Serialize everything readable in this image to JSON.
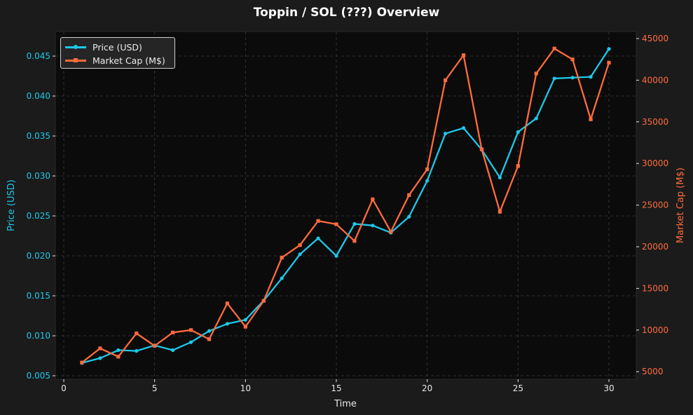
{
  "title": "Toppin / SOL (???) Overview",
  "legend": {
    "items": [
      {
        "label": "Price (USD)",
        "color": "#1ec8ea",
        "marker": "circle"
      },
      {
        "label": "Market Cap (M$)",
        "color": "#ff6b3d",
        "marker": "square"
      }
    ]
  },
  "axes": {
    "x": {
      "label": "Time",
      "ticks": [
        "0",
        "5",
        "10",
        "15",
        "20",
        "25",
        "30"
      ]
    },
    "y_left": {
      "label": "Price (USD)",
      "color": "#1ec8ea",
      "ticks": [
        "0.005",
        "0.010",
        "0.015",
        "0.020",
        "0.025",
        "0.030",
        "0.035",
        "0.040",
        "0.045"
      ]
    },
    "y_right": {
      "label": "Market Cap (M$)",
      "color": "#ff6b3d",
      "ticks": [
        "5000",
        "10000",
        "15000",
        "20000",
        "25000",
        "30000",
        "35000",
        "40000",
        "45000"
      ]
    }
  },
  "colors": {
    "background": "#1b1b1b",
    "plot_background": "#0b0b0b",
    "grid": "#3a3a3a",
    "price": "#1ec8ea",
    "market_cap": "#ff6b3d"
  },
  "chart_data": {
    "type": "line",
    "title": "Toppin / SOL (???) Overview",
    "xlabel": "Time",
    "ylabel": "Price (USD)",
    "ylabel_right": "Market Cap (M$)",
    "xlim": [
      -0.5,
      31.5
    ],
    "ylim": [
      0.0045,
      0.048
    ],
    "ylim_right": [
      4300,
      46200
    ],
    "grid": true,
    "legend_position": "upper left",
    "x": [
      1,
      2,
      3,
      4,
      5,
      6,
      7,
      8,
      9,
      10,
      11,
      12,
      13,
      14,
      15,
      16,
      17,
      18,
      19,
      20,
      21,
      22,
      23,
      24,
      25,
      26,
      27,
      28,
      29,
      30
    ],
    "series": [
      {
        "name": "Price (USD)",
        "axis": "left",
        "color": "#1ec8ea",
        "values": [
          0.0066,
          0.0072,
          0.0082,
          0.0081,
          0.0088,
          0.0082,
          0.0092,
          0.0106,
          0.0115,
          0.012,
          0.0144,
          0.0172,
          0.0202,
          0.0222,
          0.02,
          0.024,
          0.0238,
          0.0229,
          0.0249,
          0.0294,
          0.0353,
          0.036,
          0.0333,
          0.0298,
          0.0355,
          0.0372,
          0.0422,
          0.0423,
          0.0424,
          0.0459
        ]
      },
      {
        "name": "Market Cap (M$)",
        "axis": "right",
        "color": "#ff6b3d",
        "values": [
          6100,
          7800,
          6800,
          9600,
          8100,
          9700,
          10000,
          8900,
          13200,
          10400,
          13500,
          18700,
          20200,
          23100,
          22700,
          20700,
          25700,
          21800,
          26200,
          29300,
          40000,
          43000,
          31700,
          24200,
          29700,
          40800,
          43800,
          42500,
          35300,
          42100
        ]
      }
    ]
  }
}
